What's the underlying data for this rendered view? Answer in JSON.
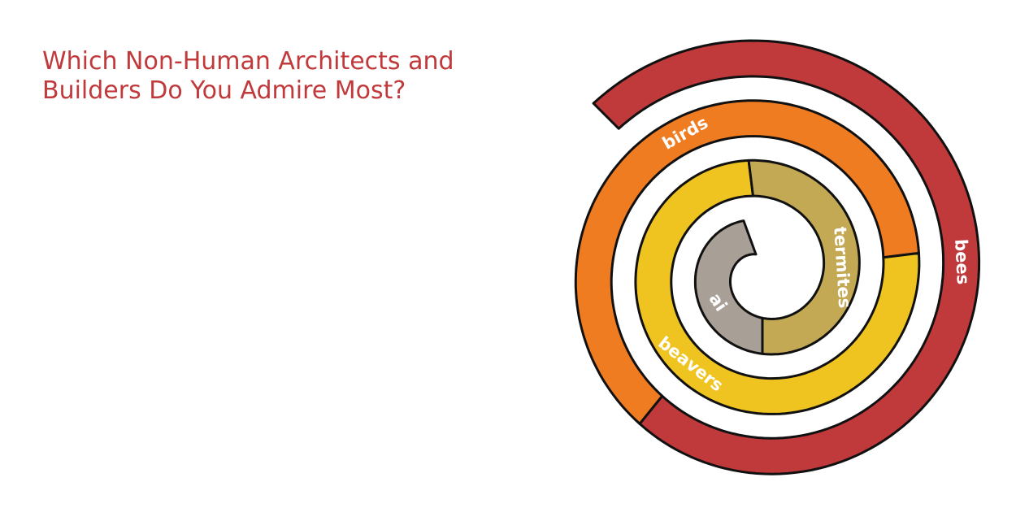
{
  "chart_data": {
    "type": "spiral",
    "title": "Which Non-Human Architects and Builders Do You Admire Most?",
    "segments": [
      {
        "label": "bees",
        "value": 264,
        "color": "#c0393b"
      },
      {
        "label": "birds",
        "value": 224,
        "color": "#f07c22"
      },
      {
        "label": "beavers",
        "value": 270,
        "color": "#f0c420"
      },
      {
        "label": "termites",
        "value": 187,
        "color": "#c4a955"
      },
      {
        "label": "ai",
        "value": 160,
        "color": "#a89f96"
      }
    ]
  }
}
